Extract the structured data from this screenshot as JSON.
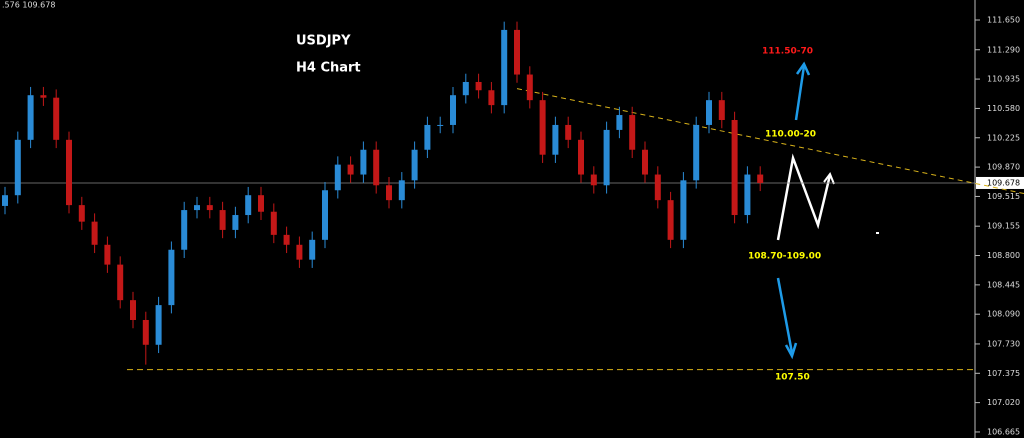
{
  "chart_data": {
    "type": "candlestick",
    "title": "USDJPY",
    "subtitle": "H4 Chart",
    "header_text": ".576 109.678",
    "open": [
      109.4,
      109.53,
      110.2,
      110.74,
      110.71,
      110.2,
      109.41,
      109.21,
      108.93,
      108.69,
      108.26,
      108.02,
      107.72,
      108.2,
      108.87,
      109.35,
      109.41,
      109.35,
      109.11,
      109.29,
      109.53,
      109.33,
      109.05,
      108.93,
      108.75,
      108.99,
      109.59,
      109.9,
      109.78,
      110.08,
      109.65,
      109.47,
      109.71,
      110.08,
      110.38,
      110.38,
      110.74,
      110.9,
      110.8,
      110.62,
      111.53,
      110.99,
      110.68,
      110.02,
      110.38,
      110.2,
      109.78,
      109.65,
      110.32,
      110.5,
      110.08,
      109.78,
      109.47,
      108.99,
      109.71,
      110.38,
      110.68,
      110.44,
      109.29,
      109.78
    ],
    "high": [
      109.63,
      110.3,
      110.84,
      110.84,
      110.81,
      110.3,
      109.51,
      109.31,
      109.03,
      108.79,
      108.36,
      108.12,
      108.3,
      108.97,
      109.45,
      109.51,
      109.51,
      109.45,
      109.39,
      109.63,
      109.63,
      109.43,
      109.15,
      109.03,
      109.09,
      109.69,
      110.0,
      110.0,
      110.18,
      110.18,
      109.75,
      109.81,
      110.18,
      110.48,
      110.48,
      110.84,
      111.0,
      111.0,
      110.9,
      111.63,
      111.63,
      111.09,
      110.78,
      110.48,
      110.48,
      110.3,
      109.88,
      110.42,
      110.6,
      110.6,
      110.18,
      109.88,
      109.57,
      109.81,
      110.48,
      110.78,
      110.78,
      110.54,
      109.88,
      109.88
    ],
    "low": [
      109.3,
      109.43,
      110.1,
      110.61,
      110.1,
      109.31,
      109.11,
      108.83,
      108.59,
      108.16,
      107.92,
      107.48,
      107.62,
      108.1,
      108.77,
      109.25,
      109.25,
      109.01,
      109.01,
      109.19,
      109.23,
      108.95,
      108.83,
      108.65,
      108.65,
      108.89,
      109.49,
      109.68,
      109.68,
      109.55,
      109.37,
      109.37,
      109.61,
      109.98,
      110.28,
      110.28,
      110.64,
      110.7,
      110.52,
      110.52,
      110.89,
      110.58,
      109.92,
      109.92,
      110.1,
      109.68,
      109.55,
      109.55,
      110.22,
      109.98,
      109.68,
      109.37,
      108.89,
      108.89,
      109.61,
      110.28,
      110.34,
      109.19,
      109.19,
      109.58
    ],
    "close": [
      109.53,
      110.2,
      110.74,
      110.71,
      110.2,
      109.41,
      109.21,
      108.93,
      108.69,
      108.26,
      108.02,
      107.72,
      108.2,
      108.87,
      109.35,
      109.41,
      109.35,
      109.11,
      109.29,
      109.53,
      109.33,
      109.05,
      108.93,
      108.75,
      108.99,
      109.59,
      109.9,
      109.78,
      110.08,
      109.65,
      109.47,
      109.71,
      110.08,
      110.38,
      110.38,
      110.74,
      110.9,
      110.8,
      110.62,
      111.53,
      110.99,
      110.68,
      110.02,
      110.38,
      110.2,
      109.78,
      109.65,
      110.32,
      110.5,
      110.08,
      109.78,
      109.47,
      108.99,
      109.71,
      110.38,
      110.68,
      110.44,
      109.29,
      109.78,
      109.678
    ],
    "up_color": "#2a8bd6",
    "down_color": "#c41818",
    "ylim": [
      106.592,
      111.892
    ],
    "yticks": [
      {
        "value": 111.65,
        "label": "111.650"
      },
      {
        "value": 111.29,
        "label": "111.290"
      },
      110.935,
      {
        "value": 110.58,
        "label": "110.580"
      },
      110.225,
      {
        "value": 109.87,
        "label": "109.870"
      },
      109.515,
      109.155,
      {
        "value": 108.8,
        "label": "108.800"
      },
      108.445,
      {
        "value": 108.09,
        "label": "108.090"
      },
      {
        "value": 107.73,
        "label": "107.730"
      },
      107.375,
      {
        "value": 107.02,
        "label": "107.020"
      },
      106.665
    ],
    "current_price": 109.678,
    "support_level": 107.42,
    "trendline": [
      110.82,
      109.55
    ],
    "annotations": [
      {
        "text": "111.50-70",
        "color": "#ff1a1a"
      },
      {
        "text": "110.00-20",
        "color": "#ffff00"
      },
      {
        "text": "108.70-109.00",
        "color": "#ffff00"
      },
      {
        "text": "107.50",
        "color": "#ffff00"
      }
    ]
  }
}
